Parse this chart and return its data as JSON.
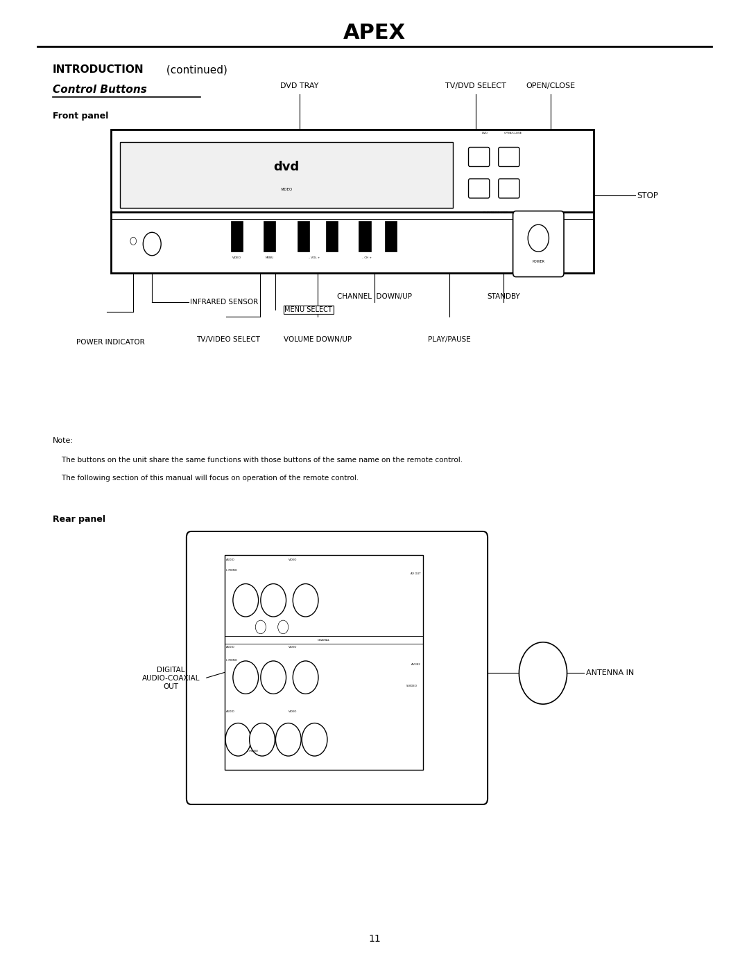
{
  "bg_color": "#ffffff",
  "text_color": "#000000",
  "page_width": 10.8,
  "page_height": 13.97,
  "apex_logo": "APEX",
  "title_bold": "INTRODUCTION",
  "title_normal": " (continued)",
  "subtitle": "Control Buttons",
  "front_panel_label": "Front panel",
  "rear_panel_label": "Rear panel",
  "note_line1": "Note:",
  "note_line2": "    The buttons on the unit share the same functions with those buttons of the same name on the remote control.",
  "note_line3": "    The following section of this manual will focus on operation of the remote control.",
  "page_number": "11",
  "stop_label": "STOP",
  "digital_label": "DIGITAL\nAUDIO-COAXIAL\nOUT",
  "antenna_label": "ANTENNA IN"
}
